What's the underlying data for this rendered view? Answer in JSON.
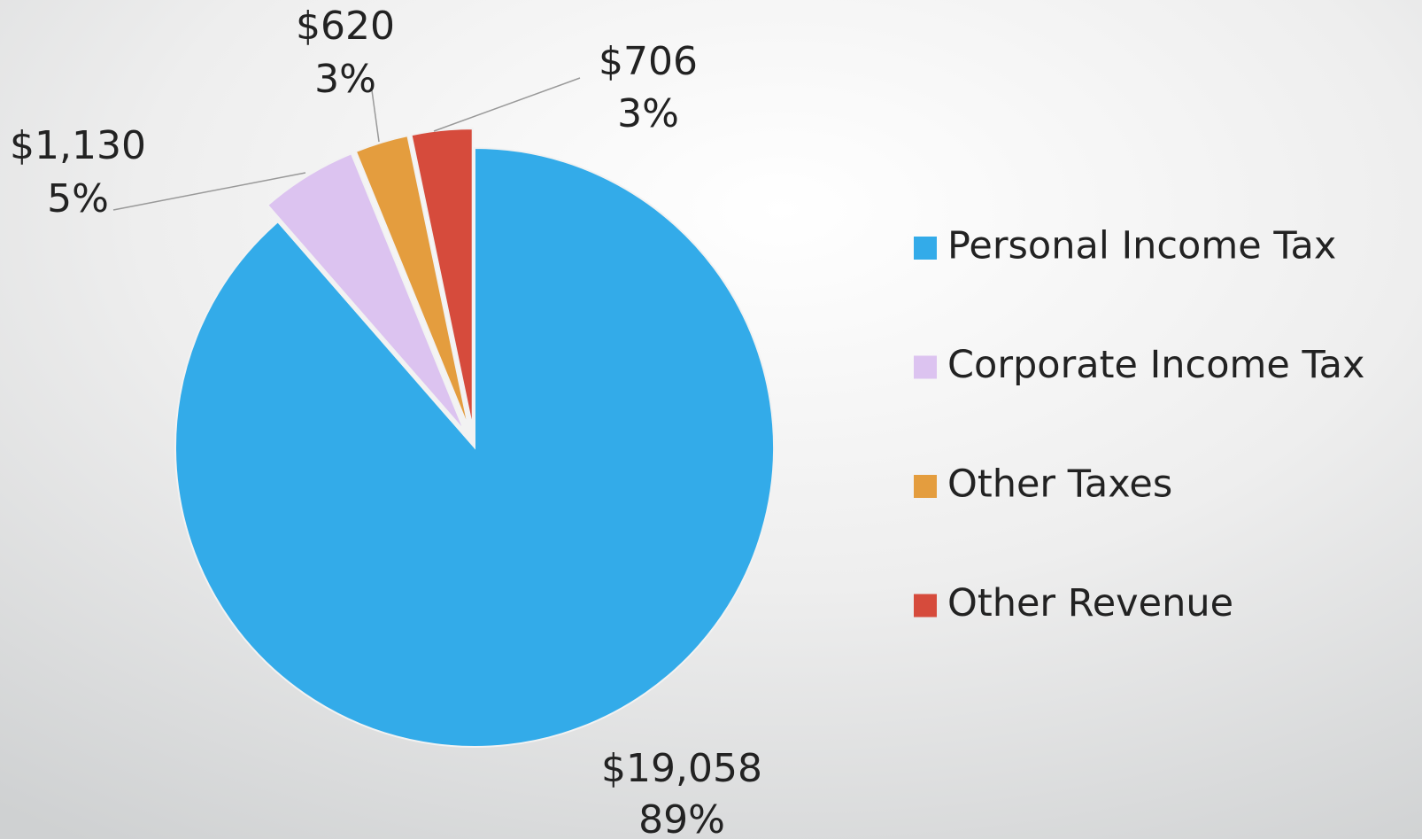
{
  "chart_data": {
    "type": "pie",
    "categories": [
      "Personal Income Tax",
      "Corporate Income Tax",
      "Other Taxes",
      "Other Revenue"
    ],
    "values": [
      19058,
      1130,
      620,
      706
    ],
    "value_labels": [
      "$19,058",
      "$1,130",
      "$620",
      "$706"
    ],
    "percent_labels": [
      "89%",
      "5%",
      "3%",
      "3%"
    ],
    "colors": [
      "#33abe9",
      "#dcc3f0",
      "#e49d3e",
      "#d64b3c"
    ],
    "legend": "right"
  }
}
